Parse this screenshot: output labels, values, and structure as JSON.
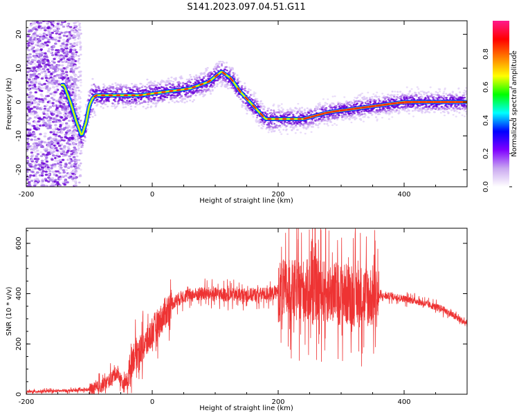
{
  "title": "S141.2023.097.04.51.G11",
  "chart_data": [
    {
      "type": "heatmap",
      "name": "spectrogram",
      "xlabel": "Height of straight line (km)",
      "ylabel": "Frequency (Hz)",
      "xlim": [
        -200,
        500
      ],
      "ylim": [
        -25,
        24
      ],
      "xticks": [
        -200,
        0,
        200,
        400
      ],
      "yticks": [
        -20,
        -10,
        0,
        10,
        20
      ],
      "colorbar": {
        "label": "Normalized spectral amplitude",
        "range": [
          0,
          1
        ],
        "ticks": [
          "0.0",
          "0.2",
          "0.4",
          "0.6",
          "0.8"
        ],
        "colormap": [
          "#ffffff",
          "#c9a8f0",
          "#7f00ff",
          "#0000ff",
          "#00ffff",
          "#00ff00",
          "#ffff00",
          "#ff7f00",
          "#ff0000",
          "#ff1a8c"
        ]
      },
      "ridge": {
        "x": [
          -140,
          -130,
          -120,
          -112,
          -105,
          -100,
          -95,
          -90,
          -60,
          -20,
          20,
          60,
          90,
          110,
          125,
          140,
          160,
          180,
          200,
          240,
          280,
          320,
          360,
          400,
          440,
          500
        ],
        "y": [
          5,
          0,
          -6,
          -10,
          -6,
          -1,
          1,
          2,
          2,
          2,
          3,
          4,
          6,
          9,
          7,
          3,
          -1,
          -5,
          -5,
          -5,
          -3,
          -2,
          -1,
          0,
          0,
          0
        ]
      }
    },
    {
      "type": "line",
      "name": "snr",
      "xlabel": "Height of straight line (km)",
      "ylabel": "SNR (10 * v/v)",
      "xlim": [
        -200,
        500
      ],
      "ylim": [
        0,
        660
      ],
      "xticks": [
        -200,
        0,
        200,
        400
      ],
      "yticks": [
        0,
        200,
        400,
        600
      ],
      "color": "#ee3333",
      "envelope": {
        "x": [
          -200,
          -120,
          -90,
          -70,
          -55,
          -45,
          -40,
          -30,
          -10,
          0,
          15,
          30,
          50,
          80,
          120,
          160,
          190,
          200,
          230,
          260,
          300,
          330,
          360,
          380,
          420,
          460,
          500
        ],
        "y": [
          10,
          15,
          20,
          50,
          90,
          30,
          60,
          150,
          200,
          250,
          300,
          360,
          390,
          400,
          395,
          395,
          400,
          410,
          410,
          415,
          400,
          390,
          390,
          390,
          370,
          340,
          280
        ]
      },
      "noise_regions": [
        {
          "x": [
            -200,
            -100
          ],
          "amp": 8
        },
        {
          "x": [
            -100,
            -40
          ],
          "amp": 40
        },
        {
          "x": [
            -40,
            30
          ],
          "amp": 90
        },
        {
          "x": [
            30,
            200
          ],
          "amp": 40
        },
        {
          "x": [
            200,
            360
          ],
          "amp": 180
        },
        {
          "x": [
            360,
            500
          ],
          "amp": 20
        }
      ]
    }
  ]
}
